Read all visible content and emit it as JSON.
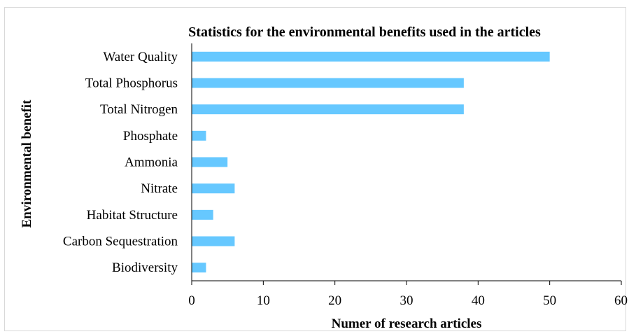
{
  "chart_data": {
    "type": "bar",
    "orientation": "horizontal",
    "title": "Statistics for the environmental benefits used in the articles",
    "xlabel": "Numer of research articles",
    "ylabel": "Environmental benefit",
    "categories": [
      "Water Quality",
      "Total Phosphorus",
      "Total Nitrogen",
      "Phosphate",
      "Ammonia",
      "Nitrate",
      "Habitat Structure",
      "Carbon Sequestration",
      "Biodiversity"
    ],
    "values": [
      50,
      38,
      38,
      2,
      5,
      6,
      3,
      6,
      2
    ],
    "xlim": [
      0,
      60
    ],
    "xticks": [
      0,
      10,
      20,
      30,
      40,
      50,
      60
    ],
    "grid": false,
    "legend": "none",
    "bar_color": "#66c8ff"
  }
}
